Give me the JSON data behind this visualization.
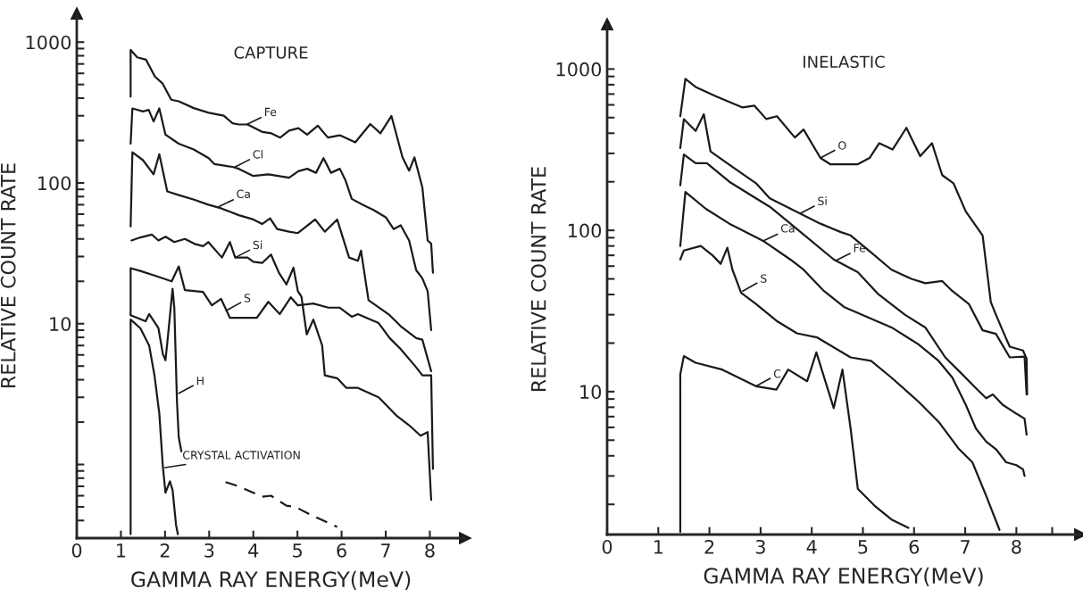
{
  "chart_data": [
    {
      "type": "line",
      "title": "CAPTURE",
      "xlabel": "GAMMA RAY ENERGY(MeV)",
      "ylabel": "RELATIVE COUNT RATE",
      "log": "y",
      "grid": false,
      "xlim": [
        0,
        8.8
      ],
      "ylim": [
        0.3,
        1600
      ],
      "xticks": [
        0,
        1,
        2,
        3,
        4,
        5,
        6,
        7,
        8
      ],
      "yticks": [
        {
          "value": 0.4,
          "label": null
        },
        {
          "value": 0.5,
          "label": null
        },
        {
          "value": 0.6,
          "label": null
        },
        {
          "value": 0.7,
          "label": null
        },
        {
          "value": 0.8,
          "label": null
        },
        {
          "value": 0.9,
          "label": null
        },
        {
          "value": 1,
          "label": null
        },
        {
          "value": 2,
          "label": null
        },
        {
          "value": 3,
          "label": null
        },
        {
          "value": 4,
          "label": null
        },
        {
          "value": 5,
          "label": null
        },
        {
          "value": 6,
          "label": null
        },
        {
          "value": 7,
          "label": null
        },
        {
          "value": 8,
          "label": null
        },
        {
          "value": 9,
          "label": null
        },
        10,
        {
          "value": 20,
          "label": null
        },
        {
          "value": 30,
          "label": null
        },
        {
          "value": 40,
          "label": null
        },
        {
          "value": 50,
          "label": null
        },
        {
          "value": 60,
          "label": null
        },
        {
          "value": 70,
          "label": null
        },
        {
          "value": 80,
          "label": null
        },
        {
          "value": 90,
          "label": null
        },
        100,
        {
          "value": 200,
          "label": null
        },
        {
          "value": 300,
          "label": null
        },
        {
          "value": 400,
          "label": null
        },
        {
          "value": 500,
          "label": null
        },
        {
          "value": 600,
          "label": null
        },
        {
          "value": 700,
          "label": null
        },
        {
          "value": 800,
          "label": null
        },
        {
          "value": 900,
          "label": null
        },
        1000
      ],
      "series": [
        {
          "color": "#1a1a1a",
          "x": [
            1.22,
            1.22,
            1.37,
            1.57,
            1.77,
            1.94,
            2.14,
            2.31,
            2.65,
            2.99,
            3.33,
            3.53,
            3.67,
            3.87,
            4.21,
            4.41,
            4.61,
            4.81,
            5.02,
            5.22,
            5.46,
            5.69,
            5.96,
            6.31,
            6.65,
            6.88,
            7.13,
            7.38,
            7.53,
            7.65,
            7.83,
            7.95,
            8.03,
            8.07
          ],
          "values": [
            410,
            880,
            780,
            750,
            570,
            510,
            390,
            380,
            340,
            315,
            300,
            265,
            260,
            260,
            230,
            225,
            210,
            235,
            245,
            220,
            255,
            210,
            218,
            194,
            262,
            225,
            299,
            152,
            122,
            152,
            93,
            39,
            37,
            23
          ]
        },
        {
          "color": "#1a1a1a",
          "x": [
            1.22,
            1.26,
            1.5,
            1.63,
            1.74,
            1.87,
            2.01,
            2.31,
            2.65,
            2.99,
            3.12,
            3.53,
            3.67,
            4.0,
            4.34,
            4.81,
            5.02,
            5.22,
            5.42,
            5.59,
            5.76,
            5.96,
            6.09,
            6.23,
            6.48,
            6.73,
            7.0,
            7.18,
            7.34,
            7.53,
            7.69,
            7.83,
            7.95,
            8.03
          ],
          "values": [
            190,
            338,
            322,
            330,
            273,
            338,
            220,
            190,
            173,
            150,
            136,
            130,
            126,
            112,
            115,
            109,
            121,
            126,
            118,
            150,
            118,
            126,
            104,
            77,
            70,
            64,
            57,
            47,
            50,
            39,
            24,
            21,
            17,
            9
          ]
        },
        {
          "color": "#1a1a1a",
          "x": [
            1.22,
            1.26,
            1.5,
            1.74,
            1.87,
            2.05,
            2.31,
            2.66,
            2.98,
            3.27,
            3.67,
            4.0,
            4.2,
            4.38,
            4.54,
            4.81,
            5.01,
            5.4,
            5.62,
            5.9,
            6.17,
            6.37,
            6.44,
            6.61,
            7.09,
            7.34,
            7.69,
            7.83,
            8.03
          ],
          "values": [
            49,
            165,
            145,
            115,
            160,
            87,
            82,
            76,
            70,
            66,
            59,
            55,
            51,
            56,
            47,
            45,
            44,
            55,
            45,
            55,
            29.5,
            28,
            33,
            14.7,
            11.5,
            9.6,
            7.9,
            7.7,
            4.6
          ]
        },
        {
          "color": "#1a1a1a",
          "x": [
            1.24,
            1.44,
            1.7,
            1.85,
            2.01,
            2.21,
            2.45,
            2.66,
            2.86,
            2.98,
            3.29,
            3.47,
            3.59,
            3.87,
            4.0,
            4.2,
            4.4,
            4.58,
            4.75,
            4.91,
            5.01,
            5.09,
            5.21,
            5.36,
            5.56,
            5.62,
            5.9,
            6.11,
            6.37,
            6.84,
            7.26,
            7.53,
            7.79,
            7.95,
            8.03
          ],
          "values": [
            39,
            41,
            43,
            39,
            41.5,
            38,
            40,
            37,
            35.5,
            38,
            29.5,
            38,
            29.5,
            29.5,
            27.5,
            27,
            31,
            23,
            19,
            25,
            17,
            15.6,
            8.4,
            10.7,
            7,
            4.3,
            4.1,
            3.5,
            3.5,
            3,
            2.2,
            1.9,
            1.6,
            1.7,
            0.56
          ]
        },
        {
          "color": "#1a1a1a",
          "x": [
            1.22,
            1.22,
            1.44,
            1.76,
            2.15,
            2.31,
            2.45,
            2.86,
            3.06,
            3.27,
            3.47,
            4.08,
            4.34,
            4.6,
            4.85,
            5.01,
            5.36,
            5.7,
            5.96,
            6.23,
            6.37,
            6.84,
            7.09,
            7.34,
            7.69,
            7.83,
            8.03,
            8.07
          ],
          "values": [
            11.5,
            24.8,
            23.7,
            22,
            20,
            25.5,
            17.3,
            16.8,
            13.5,
            15,
            11,
            11,
            14.3,
            11.7,
            15.4,
            13.5,
            13.9,
            13,
            13,
            11.2,
            11.7,
            10.1,
            7.9,
            6.6,
            4.9,
            4.3,
            4.3,
            0.93
          ]
        },
        {
          "color": "#1a1a1a",
          "x": [
            1.22,
            1.56,
            1.64,
            1.85,
            1.95,
            2.01,
            2.07,
            2.17,
            2.21,
            2.27,
            2.31,
            2.37
          ],
          "values": [
            11.5,
            10.4,
            11.7,
            9.3,
            6.1,
            5.5,
            8.4,
            17.7,
            13,
            2.8,
            1.56,
            1.24
          ]
        },
        {
          "color": "#1a1a1a",
          "x": [
            1.22,
            1.22,
            1.44,
            1.64,
            1.76,
            1.87,
            1.95,
            2.01,
            2.11,
            2.17,
            2.25,
            2.29
          ],
          "values": [
            0.32,
            10.7,
            9.3,
            7,
            4.3,
            2.3,
            0.97,
            0.63,
            0.76,
            0.66,
            0.37,
            0.32
          ]
        },
        {
          "color": "#1a1a1a",
          "line_style": "dashed",
          "x": [
            3.37,
            3.67,
            4.2,
            4.4,
            4.75,
            4.95,
            5.36,
            5.9
          ],
          "values": [
            0.75,
            0.7,
            0.59,
            0.6,
            0.51,
            0.5,
            0.43,
            0.36
          ]
        }
      ],
      "annotations": [
        {
          "text": "Fe",
          "x": 3.85,
          "y": 260
        },
        {
          "text": "Cl",
          "x": 3.59,
          "y": 130
        },
        {
          "text": "Ca",
          "x": 3.22,
          "y": 68
        },
        {
          "text": "Si",
          "x": 3.59,
          "y": 29.5
        },
        {
          "text": "S",
          "x": 3.39,
          "y": 12.4
        },
        {
          "text": "H",
          "x": 2.31,
          "y": 3.2
        },
        {
          "text": "CRYSTAL ACTIVATION",
          "x": 2.0,
          "y": 0.95
        }
      ]
    },
    {
      "type": "line",
      "title": "INELASTIC",
      "xlabel": "GAMMA RAY ENERGY(MeV)",
      "ylabel": "RELATIVE COUNT RATE",
      "log": "y",
      "grid": false,
      "xlim": [
        0,
        9.25
      ],
      "ylim": [
        1.3,
        1900
      ],
      "xticks": [
        0,
        1,
        2,
        3,
        4,
        5,
        6,
        7,
        8,
        {
          "value": 8.7,
          "label": null
        }
      ],
      "yticks": [
        {
          "value": 2,
          "label": null
        },
        {
          "value": 3,
          "label": null
        },
        {
          "value": 4,
          "label": null
        },
        {
          "value": 5,
          "label": null
        },
        {
          "value": 6,
          "label": null
        },
        {
          "value": 7,
          "label": null
        },
        {
          "value": 8,
          "label": null
        },
        {
          "value": 9,
          "label": null
        },
        10,
        {
          "value": 20,
          "label": null
        },
        {
          "value": 30,
          "label": null
        },
        {
          "value": 40,
          "label": null
        },
        {
          "value": 50,
          "label": null
        },
        {
          "value": 60,
          "label": null
        },
        {
          "value": 70,
          "label": null
        },
        {
          "value": 80,
          "label": null
        },
        {
          "value": 90,
          "label": null
        },
        100,
        {
          "value": 200,
          "label": null
        },
        {
          "value": 300,
          "label": null
        },
        {
          "value": 400,
          "label": null
        },
        {
          "value": 500,
          "label": null
        },
        {
          "value": 600,
          "label": null
        },
        {
          "value": 700,
          "label": null
        },
        {
          "value": 800,
          "label": null
        },
        {
          "value": 900,
          "label": null
        },
        1000
      ],
      "series": [
        {
          "color": "#1a1a1a",
          "x": [
            1.43,
            1.53,
            1.73,
            2.12,
            2.65,
            2.88,
            3.11,
            3.32,
            3.67,
            3.84,
            4.17,
            4.36,
            4.9,
            5.13,
            5.32,
            5.58,
            5.85,
            6.12,
            6.35,
            6.55,
            6.77,
            7.01,
            7.34,
            7.5,
            7.6,
            7.73,
            7.87,
            8.13,
            8.2,
            8.21
          ],
          "values": [
            510,
            870,
            775,
            680,
            578,
            593,
            490,
            510,
            376,
            422,
            281,
            257,
            257,
            281,
            347,
            317,
            432,
            288,
            347,
            220,
            196,
            131,
            93,
            36,
            30,
            24,
            19,
            18,
            16,
            9.6
          ]
        },
        {
          "color": "#1a1a1a",
          "x": [
            1.43,
            1.5,
            1.73,
            1.89,
            2.02,
            2.39,
            2.91,
            3.18,
            3.71,
            4.17,
            4.57,
            4.76,
            5.16,
            5.56,
            5.95,
            6.22,
            6.55,
            6.75,
            7.07,
            7.34,
            7.6,
            7.87,
            8.16,
            8.2
          ],
          "values": [
            324,
            489,
            413,
            525,
            309,
            255,
            196,
            158,
            130,
            110,
            97.5,
            93,
            73,
            57,
            50,
            47,
            48.5,
            42,
            35,
            24,
            22.8,
            16.3,
            16.5,
            9.6
          ]
        },
        {
          "color": "#1a1a1a",
          "x": [
            1.43,
            1.5,
            1.73,
            1.95,
            2.39,
            2.91,
            3.18,
            3.71,
            4.43,
            4.9,
            5.29,
            5.82,
            6.22,
            6.61,
            6.88,
            7.21,
            7.41,
            7.54,
            7.73,
            8.0,
            8.16,
            8.2
          ],
          "values": [
            190,
            295,
            261,
            261,
            200,
            158,
            140,
            102,
            66,
            55,
            40.5,
            30,
            25,
            16.3,
            13.4,
            10.5,
            9.1,
            9.6,
            8.3,
            7.3,
            6.8,
            5.4
          ]
        },
        {
          "color": "#1a1a1a",
          "x": [
            1.43,
            1.53,
            1.93,
            2.39,
            3.05,
            3.58,
            3.84,
            4.24,
            4.63,
            5.56,
            6.08,
            6.48,
            6.75,
            7.01,
            7.21,
            7.41,
            7.6,
            7.8,
            8.0,
            8.13,
            8.16
          ],
          "values": [
            80,
            173,
            136,
            110,
            86,
            66,
            57,
            42,
            33.5,
            25,
            19.7,
            15.5,
            12.2,
            8.3,
            5.9,
            4.9,
            4.4,
            3.65,
            3.5,
            3.3,
            3.0
          ]
        },
        {
          "color": "#1a1a1a",
          "x": [
            1.43,
            1.5,
            1.83,
            2.06,
            2.22,
            2.35,
            2.45,
            2.62,
            2.91,
            3.31,
            3.71,
            4.1,
            4.76,
            5.16,
            5.56,
            6.08,
            6.48,
            6.88,
            7.14,
            7.41,
            7.67
          ],
          "values": [
            66,
            75,
            80,
            70,
            62,
            78,
            57,
            41,
            35,
            27.5,
            23,
            21.7,
            16.3,
            15.5,
            12.2,
            8.7,
            6.5,
            4.4,
            3.65,
            2.26,
            1.39
          ]
        },
        {
          "color": "#1a1a1a",
          "x": [
            1.43,
            1.43,
            1.5,
            1.73,
            2.25,
            2.91,
            3.31,
            3.54,
            3.91,
            4.09,
            4.43,
            4.6,
            4.76,
            4.9,
            5.23,
            5.56,
            5.89
          ],
          "values": [
            1.35,
            12.8,
            16.6,
            15.1,
            13.7,
            10.8,
            10.3,
            13.7,
            11.6,
            17.5,
            7.9,
            13.7,
            5.9,
            2.5,
            1.96,
            1.61,
            1.43
          ]
        }
      ],
      "annotations": [
        {
          "text": "O",
          "x": 4.17,
          "y": 281
        },
        {
          "text": "Si",
          "x": 3.77,
          "y": 127
        },
        {
          "text": "Ca",
          "x": 3.05,
          "y": 86
        },
        {
          "text": "Fe",
          "x": 4.47,
          "y": 65
        },
        {
          "text": "S",
          "x": 2.65,
          "y": 42
        },
        {
          "text": "C",
          "x": 2.91,
          "y": 10.8
        }
      ]
    }
  ]
}
